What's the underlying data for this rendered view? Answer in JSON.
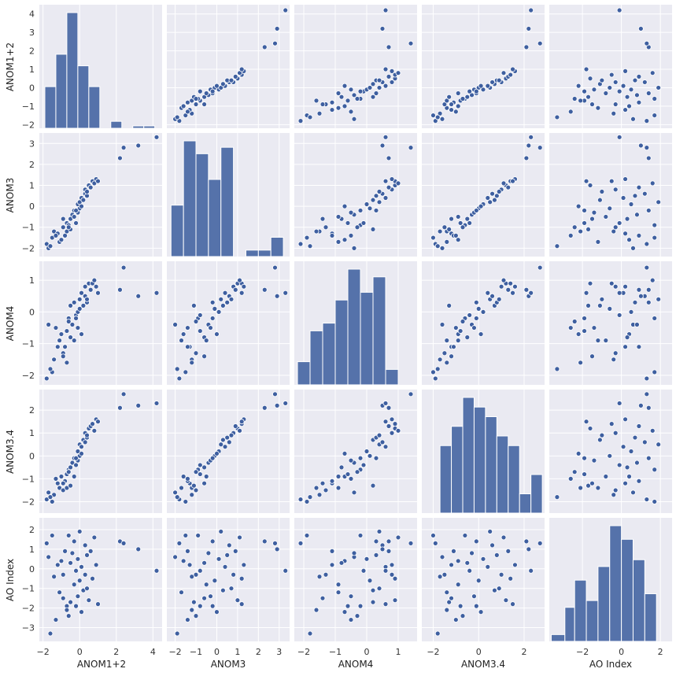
{
  "chart_data": {
    "type": "pairplot",
    "title": "",
    "variables": [
      "ANOM1+2",
      "ANOM3",
      "ANOM4",
      "ANOM3.4",
      "AO Index"
    ],
    "axis_labels": {
      "x": [
        "ANOM1+2",
        "ANOM3",
        "ANOM4",
        "ANOM3.4",
        "AO Index"
      ],
      "y": [
        "ANOM1+2",
        "ANOM3",
        "ANOM4",
        "ANOM3.4",
        "AO Index"
      ]
    },
    "ranges": [
      [
        -2.2,
        4.5
      ],
      [
        -2.4,
        3.5
      ],
      [
        -2.3,
        1.6
      ],
      [
        -2.5,
        2.9
      ],
      [
        -3.7,
        2.6
      ]
    ],
    "ticks": [
      [
        -2,
        -1,
        0,
        1,
        2,
        3,
        4
      ],
      [
        -2,
        -1,
        0,
        1,
        2,
        3
      ],
      [
        -2,
        -1,
        0,
        1
      ],
      [
        -2,
        -1,
        0,
        1,
        2
      ],
      [
        -3,
        -2,
        -1,
        0,
        1,
        2
      ]
    ],
    "x_ticks": [
      [
        -2,
        0,
        2,
        4
      ],
      [
        -2,
        -1,
        0,
        1,
        2,
        3
      ],
      [
        -2,
        -1,
        0,
        1
      ],
      [
        -2,
        0,
        2
      ],
      [
        -2,
        0,
        2
      ]
    ],
    "tick_labels_y": [
      [
        "−2",
        "−1",
        "0",
        "1",
        "2",
        "3",
        "4"
      ],
      [
        "−2",
        "−1",
        "0",
        "1",
        "2",
        "3"
      ],
      [
        "−2",
        "−1",
        "0",
        "1"
      ],
      [
        "−2",
        "−1",
        "0",
        "1",
        "2"
      ],
      [
        "−3",
        "−2",
        "−1",
        "0",
        "1",
        "2"
      ]
    ],
    "tick_labels_x": [
      [
        "−2",
        "0",
        "2",
        "4"
      ],
      [
        "−2",
        "−1",
        "0",
        "1",
        "2",
        "3"
      ],
      [
        "−2",
        "−1",
        "0",
        "1"
      ],
      [
        "−2",
        "0",
        "2"
      ],
      [
        "−2",
        "0",
        "2"
      ]
    ],
    "histograms": [
      {
        "bins": [
          -1.9,
          -1.3,
          -0.7,
          -0.1,
          0.5,
          1.1,
          1.7,
          2.3,
          2.9,
          3.5,
          4.1
        ],
        "counts": [
          18,
          32,
          50,
          27,
          18,
          0,
          3,
          0,
          1,
          1
        ]
      },
      {
        "bins": [
          -2.2,
          -1.6,
          -1.0,
          -0.4,
          0.2,
          0.8,
          1.4,
          2.0,
          2.6,
          3.2
        ],
        "counts": [
          8,
          18,
          16,
          12,
          17,
          0,
          1,
          1,
          3
        ]
      },
      {
        "bins": [
          -2.2,
          -1.8,
          -1.4,
          -1.0,
          -0.6,
          -0.2,
          0.2,
          0.6,
          1.0,
          1.4
        ],
        "counts": [
          3,
          7,
          8,
          11,
          15,
          12,
          14,
          2,
          0
        ]
      },
      {
        "bins": [
          -2.2,
          -1.7,
          -1.2,
          -0.7,
          -0.2,
          0.3,
          0.8,
          1.3,
          1.8,
          2.3,
          2.8
        ],
        "counts": [
          0,
          7,
          9,
          12,
          11,
          10,
          8,
          7,
          2,
          4
        ]
      },
      {
        "bins": [
          -3.6,
          -2.9,
          -2.4,
          -1.8,
          -1.2,
          -0.6,
          0.0,
          0.6,
          1.2,
          1.8,
          2.4
        ],
        "counts": [
          1,
          5,
          9,
          6,
          11,
          17,
          15,
          12,
          7,
          0
        ]
      }
    ],
    "points": [
      [
        -1.8,
        -1.8,
        -2.1,
        -1.9,
        1.3
      ],
      [
        -1.7,
        -2.0,
        -0.4,
        -1.6,
        0.6
      ],
      [
        -1.5,
        -1.5,
        -1.9,
        -2.0,
        1.7
      ],
      [
        -1.4,
        -1.2,
        -1.5,
        -1.7,
        -0.4
      ],
      [
        -1.2,
        -1.3,
        -1.1,
        -1.2,
        0.2
      ],
      [
        -1.1,
        -1.7,
        -0.9,
        -1.4,
        -1.2
      ],
      [
        -1.0,
        -1.6,
        -0.7,
        -0.9,
        0.4
      ],
      [
        -0.9,
        -1.0,
        -1.3,
        -1.5,
        -0.3
      ],
      [
        -0.8,
        -1.4,
        -1.1,
        -1.1,
        0.9
      ],
      [
        -0.7,
        -0.8,
        -0.6,
        -0.8,
        -1.9
      ],
      [
        -0.7,
        -1.2,
        -1.6,
        -1.4,
        -2.1
      ],
      [
        -0.6,
        -0.9,
        -0.2,
        -0.6,
        1.7
      ],
      [
        -0.5,
        -0.6,
        -0.8,
        -0.5,
        0.3
      ],
      [
        -0.5,
        -1.1,
        0.2,
        -1.3,
        -1.7
      ],
      [
        -0.4,
        -0.4,
        -0.4,
        -0.3,
        0.8
      ],
      [
        -0.3,
        -0.5,
        -0.9,
        -0.9,
        -0.8
      ],
      [
        -0.3,
        -0.2,
        0.3,
        -0.1,
        1.4
      ],
      [
        -0.2,
        -0.8,
        -0.1,
        -0.4,
        -0.1
      ],
      [
        -0.1,
        0.1,
        0.0,
        0.2,
        0.5
      ],
      [
        -0.1,
        -0.3,
        -0.5,
        -0.2,
        -1.4
      ],
      [
        0.0,
        0.2,
        0.4,
        0.5,
        1.9
      ],
      [
        0.0,
        -0.1,
        0.1,
        0.0,
        -0.6
      ],
      [
        0.1,
        0.4,
        0.6,
        0.4,
        0.1
      ],
      [
        0.2,
        0.3,
        0.2,
        0.7,
        -1.1
      ],
      [
        0.3,
        0.6,
        0.5,
        0.6,
        1.2
      ],
      [
        0.3,
        0.8,
        0.8,
        1.0,
        -0.3
      ],
      [
        0.4,
        0.5,
        0.3,
        0.8,
        0.7
      ],
      [
        0.5,
        1.0,
        0.9,
        1.2,
        -1.6
      ],
      [
        0.6,
        0.9,
        0.7,
        1.3,
        0.9
      ],
      [
        0.7,
        1.2,
        0.9,
        1.4,
        -0.5
      ],
      [
        0.8,
        1.1,
        1.0,
        1.1,
        1.6
      ],
      [
        0.9,
        1.3,
        0.8,
        1.6,
        0.2
      ],
      [
        1.0,
        1.2,
        0.6,
        1.5,
        -1.8
      ],
      [
        -1.6,
        -1.9,
        -1.8,
        -1.8,
        -3.3
      ],
      [
        -1.3,
        -1.4,
        -0.5,
        -1.0,
        -2.6
      ],
      [
        -0.9,
        -0.6,
        -1.4,
        -1.2,
        -1.5
      ],
      [
        -0.6,
        -1.0,
        -0.3,
        -0.7,
        -2.4
      ],
      [
        -0.2,
        -0.2,
        -0.2,
        -0.1,
        -1.9
      ],
      [
        0.1,
        0.0,
        -0.7,
        0.1,
        -2.2
      ],
      [
        0.4,
        0.7,
        0.4,
        0.9,
        -1.0
      ],
      [
        2.2,
        2.3,
        0.7,
        2.1,
        1.4
      ],
      [
        2.4,
        2.8,
        1.4,
        2.7,
        1.3
      ],
      [
        3.2,
        2.9,
        0.5,
        2.2,
        1.0
      ],
      [
        4.2,
        3.3,
        0.6,
        2.3,
        -0.1
      ]
    ]
  }
}
